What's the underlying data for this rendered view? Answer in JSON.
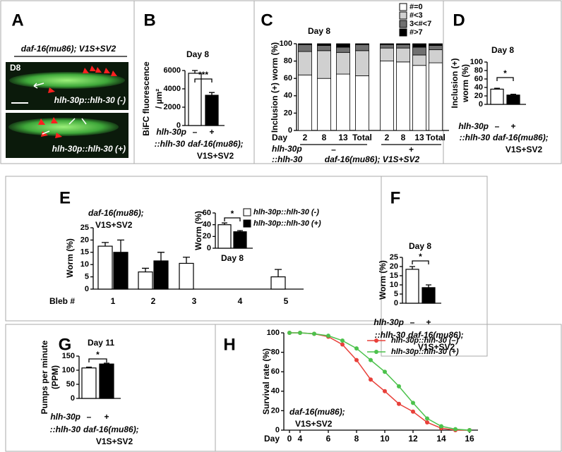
{
  "chart_data": [
    {
      "type": "image",
      "panel": "A",
      "title": "daf-16(mu86); V1S+SV2",
      "labels": [
        "D8",
        "hlh-30p::hlh-30 (-)",
        "hlh-30p::hlh-30 (+)"
      ]
    },
    {
      "type": "bar",
      "panel": "B",
      "title": "Day 8",
      "ylabel": [
        "BiFC fluorescence",
        "/ µm²"
      ],
      "categories": [
        "–",
        "+"
      ],
      "values": [
        5700,
        3300
      ],
      "errors": [
        300,
        300
      ],
      "colors": [
        "#ffffff",
        "#000000"
      ],
      "ylim": [
        0,
        6000
      ],
      "yticks": [
        0,
        2000,
        4000,
        6000
      ],
      "significance": "***",
      "row_labels": [
        "hlh-30p",
        "::hlh-30"
      ],
      "genotype": [
        "daf-16(mu86);",
        "V1S+SV2"
      ]
    },
    {
      "type": "stacked-bar",
      "panel": "C",
      "title": "Day 8",
      "ylabel": [
        "Inclusion (+) worm (%)"
      ],
      "x_row_label": "Day",
      "categories": [
        "2",
        "8",
        "13",
        "Total",
        "2",
        "8",
        "13",
        "Total"
      ],
      "groups": [
        "–",
        "+"
      ],
      "series": [
        {
          "name": "#=0",
          "color": "#ffffff",
          "values": [
            64,
            60,
            65,
            63,
            80,
            79,
            75,
            78
          ]
        },
        {
          "name": "#<3",
          "color": "#d0d0d0",
          "values": [
            27,
            32,
            25,
            29,
            15,
            16,
            12,
            15
          ]
        },
        {
          "name": "3<#<7",
          "color": "#707070",
          "values": [
            8,
            6,
            6,
            7,
            4,
            4,
            9,
            5
          ]
        },
        {
          "name": "#>7",
          "color": "#000000",
          "values": [
            1,
            2,
            4,
            1,
            1,
            1,
            4,
            2
          ]
        }
      ],
      "ylim": [
        0,
        100
      ],
      "yticks": [
        0,
        20,
        40,
        60,
        80,
        100
      ],
      "row_labels": [
        "hlh-30p",
        "::hlh-30"
      ],
      "genotype": [
        "daf-16(mu86); V1S+SV2"
      ]
    },
    {
      "type": "bar",
      "panel": "D",
      "title": "Day 8",
      "ylabel": [
        "Inclusion (+)",
        "worm (%)"
      ],
      "categories": [
        "–",
        "+"
      ],
      "values": [
        36,
        22
      ],
      "errors": [
        2,
        2
      ],
      "colors": [
        "#ffffff",
        "#000000"
      ],
      "ylim": [
        0,
        100
      ],
      "yticks": [
        0,
        20,
        40,
        60,
        80,
        100
      ],
      "significance": "*",
      "row_labels": [
        "hlh-30p",
        "::hlh-30"
      ],
      "genotype": [
        "daf-16(mu86);",
        "V1S+SV2"
      ]
    },
    {
      "type": "grouped-bar",
      "panel": "E",
      "genotype": [
        "daf-16(mu86);",
        "V1S+SV2"
      ],
      "ylabel": [
        "Worm (%)"
      ],
      "xlabel": "Bleb #",
      "categories": [
        "1",
        "2",
        "3",
        "4",
        "5"
      ],
      "series": [
        {
          "name": "hlh-30p::hlh-30 (-)",
          "color": "#ffffff",
          "values": [
            17.5,
            7,
            10.5,
            null,
            5
          ],
          "errors": [
            1.5,
            1.5,
            2.5,
            null,
            3
          ]
        },
        {
          "name": "hlh-30p::hlh-30 (+)",
          "color": "#000000",
          "values": [
            15,
            11.5,
            null,
            null,
            null
          ],
          "errors": [
            5,
            3.5,
            null,
            null,
            null
          ]
        }
      ],
      "ylim": [
        0,
        25
      ],
      "yticks": [
        0,
        5,
        10,
        15,
        20,
        25
      ],
      "inset": {
        "type": "bar",
        "title": "Day 8",
        "ylabel": [
          "Worm (%)"
        ],
        "values": [
          40,
          28
        ],
        "errors": [
          3,
          2
        ],
        "colors": [
          "#ffffff",
          "#000000"
        ],
        "ylim": [
          0,
          60
        ],
        "yticks": [
          0,
          20,
          40,
          60
        ],
        "significance": "*"
      }
    },
    {
      "type": "bar",
      "panel": "F",
      "title": "Day 8",
      "ylabel": [
        "Worm (%)"
      ],
      "categories": [
        "–",
        "+"
      ],
      "values": [
        18.5,
        8.5
      ],
      "errors": [
        1.5,
        1.5
      ],
      "colors": [
        "#ffffff",
        "#000000"
      ],
      "ylim": [
        0,
        25
      ],
      "yticks": [
        0,
        5,
        10,
        15,
        20,
        25
      ],
      "significance": "*",
      "row_labels": [
        "hlh-30p",
        "::hlh-30"
      ],
      "genotype": [
        "daf-16(mu86);",
        "V1S+SV2"
      ]
    },
    {
      "type": "bar",
      "panel": "G",
      "title": "Day 11",
      "ylabel": [
        "Pumps per minute",
        "(PPM)"
      ],
      "categories": [
        "–",
        "+"
      ],
      "values": [
        108,
        122
      ],
      "errors": [
        3,
        3
      ],
      "colors": [
        "#ffffff",
        "#000000"
      ],
      "ylim": [
        0,
        150
      ],
      "yticks": [
        0,
        50,
        100,
        150
      ],
      "significance": "*",
      "row_labels": [
        "hlh-30p",
        "::hlh-30"
      ],
      "genotype": [
        "daf-16(mu86);",
        "V1S+SV2"
      ]
    },
    {
      "type": "line",
      "panel": "H",
      "ylabel": [
        "Survival rate (%)"
      ],
      "xlabel": "Day",
      "genotype": [
        "daf-16(mu86);",
        "V1S+SV2"
      ],
      "x": [
        0,
        4,
        5,
        6,
        7,
        8,
        9,
        10,
        11,
        12,
        13,
        14,
        15,
        16
      ],
      "series": [
        {
          "name": "hlh-30p::hlh-30 (–)",
          "color": "#e8403a",
          "values": [
            100,
            100,
            99,
            96,
            88,
            72,
            52,
            40,
            27,
            19,
            8,
            2,
            0,
            0
          ]
        },
        {
          "name": "hlh-30p::hlh-30 (+)",
          "color": "#4cc24c",
          "values": [
            100,
            100,
            99,
            97,
            92,
            84,
            72,
            60,
            45,
            28,
            12,
            4,
            1,
            0
          ]
        }
      ],
      "xlim": [
        0,
        16
      ],
      "xticks": [
        0,
        4,
        6,
        8,
        10,
        12,
        14,
        16
      ],
      "ylim": [
        0,
        100
      ],
      "yticks": [
        0,
        20,
        40,
        60,
        80,
        100
      ]
    }
  ]
}
